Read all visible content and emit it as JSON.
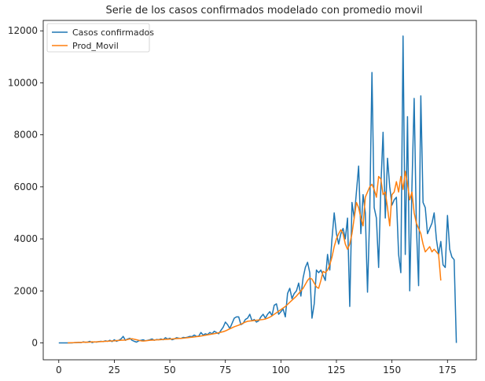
{
  "chart_data": {
    "type": "line",
    "title": "Serie de los casos confirmados modelado con promedio movil",
    "xlabel": "",
    "ylabel": "",
    "xlim": [
      -7,
      188
    ],
    "ylim": [
      -650,
      12400
    ],
    "x_ticks": [
      0,
      25,
      50,
      75,
      100,
      125,
      150,
      175
    ],
    "y_ticks": [
      0,
      2000,
      4000,
      6000,
      8000,
      10000,
      12000
    ],
    "grid": false,
    "legend_position": "upper-left",
    "series": [
      {
        "name": "Casos confirmados",
        "color": "#1f77b4",
        "x_start": 0,
        "values": [
          0,
          0,
          0,
          0,
          0,
          0,
          0,
          10,
          10,
          20,
          10,
          40,
          20,
          30,
          60,
          10,
          40,
          30,
          50,
          60,
          50,
          80,
          60,
          100,
          50,
          120,
          60,
          100,
          150,
          250,
          100,
          150,
          180,
          100,
          60,
          30,
          80,
          100,
          120,
          80,
          100,
          120,
          150,
          100,
          130,
          120,
          150,
          120,
          200,
          150,
          180,
          120,
          150,
          200,
          180,
          170,
          210,
          200,
          220,
          250,
          240,
          300,
          250,
          260,
          400,
          300,
          350,
          320,
          400,
          350,
          450,
          400,
          350,
          480,
          600,
          800,
          700,
          550,
          750,
          950,
          1000,
          1000,
          700,
          750,
          900,
          950,
          1100,
          850,
          900,
          800,
          850,
          1000,
          1100,
          950,
          1100,
          1200,
          1050,
          1450,
          1500,
          1100,
          1200,
          1300,
          1000,
          1900,
          2100,
          1700,
          1900,
          2000,
          2300,
          1800,
          2500,
          2900,
          3100,
          2700,
          950,
          1500,
          2800,
          2700,
          2800,
          2600,
          2400,
          3400,
          2800,
          4000,
          5000,
          4200,
          3800,
          4200,
          4400,
          4000,
          4800,
          1400,
          5400,
          4800,
          5800,
          6800,
          4200,
          5700,
          5000,
          1950,
          5000,
          10400,
          5200,
          4800,
          2900,
          6000,
          8100,
          4800,
          7100,
          6000,
          5300,
          5500,
          5600,
          3400,
          2700,
          11800,
          3400,
          8700,
          2000,
          6000,
          9400,
          4500,
          2200,
          9500,
          5400,
          5200,
          4200,
          4400,
          4600,
          5000,
          4000,
          3400,
          3900,
          3000,
          2900,
          4900,
          3600,
          3300,
          3200,
          0
        ]
      },
      {
        "name": "Prod_Movil",
        "color": "#ff7f0e",
        "x_start": 4,
        "values": [
          0,
          5,
          8,
          10,
          15,
          20,
          20,
          25,
          30,
          25,
          30,
          40,
          35,
          40,
          45,
          50,
          55,
          60,
          65,
          70,
          75,
          80,
          90,
          95,
          100,
          105,
          110,
          130,
          150,
          160,
          140,
          120,
          100,
          80,
          70,
          80,
          90,
          100,
          105,
          110,
          115,
          120,
          125,
          130,
          135,
          140,
          145,
          150,
          160,
          165,
          170,
          175,
          180,
          190,
          200,
          210,
          220,
          230,
          240,
          250,
          265,
          280,
          295,
          310,
          325,
          340,
          355,
          370,
          390,
          410,
          430,
          460,
          500,
          540,
          580,
          620,
          650,
          680,
          720,
          760,
          800,
          830,
          840,
          850,
          860,
          870,
          880,
          890,
          900,
          920,
          950,
          990,
          1040,
          1100,
          1160,
          1220,
          1280,
          1340,
          1400,
          1480,
          1560,
          1640,
          1720,
          1800,
          1900,
          2000,
          2100,
          2250,
          2400,
          2500,
          2450,
          2300,
          2150,
          2100,
          2400,
          2750,
          2700,
          2800,
          3000,
          3300,
          3700,
          4000,
          4200,
          4350,
          4200,
          3800,
          3600,
          3800,
          4200,
          4800,
          5400,
          5200,
          4800,
          4500,
          5600,
          5800,
          6000,
          6100,
          5900,
          5600,
          6400,
          6300,
          5700,
          5800,
          5200,
          4500,
          5700,
          5800,
          6200,
          5800,
          6400,
          5900,
          6600,
          6100,
          5500,
          5800,
          5000,
          4600,
          4400,
          4200,
          3800,
          3500,
          3600,
          3700,
          3500,
          3600,
          3500,
          3400,
          2400
        ]
      }
    ]
  }
}
